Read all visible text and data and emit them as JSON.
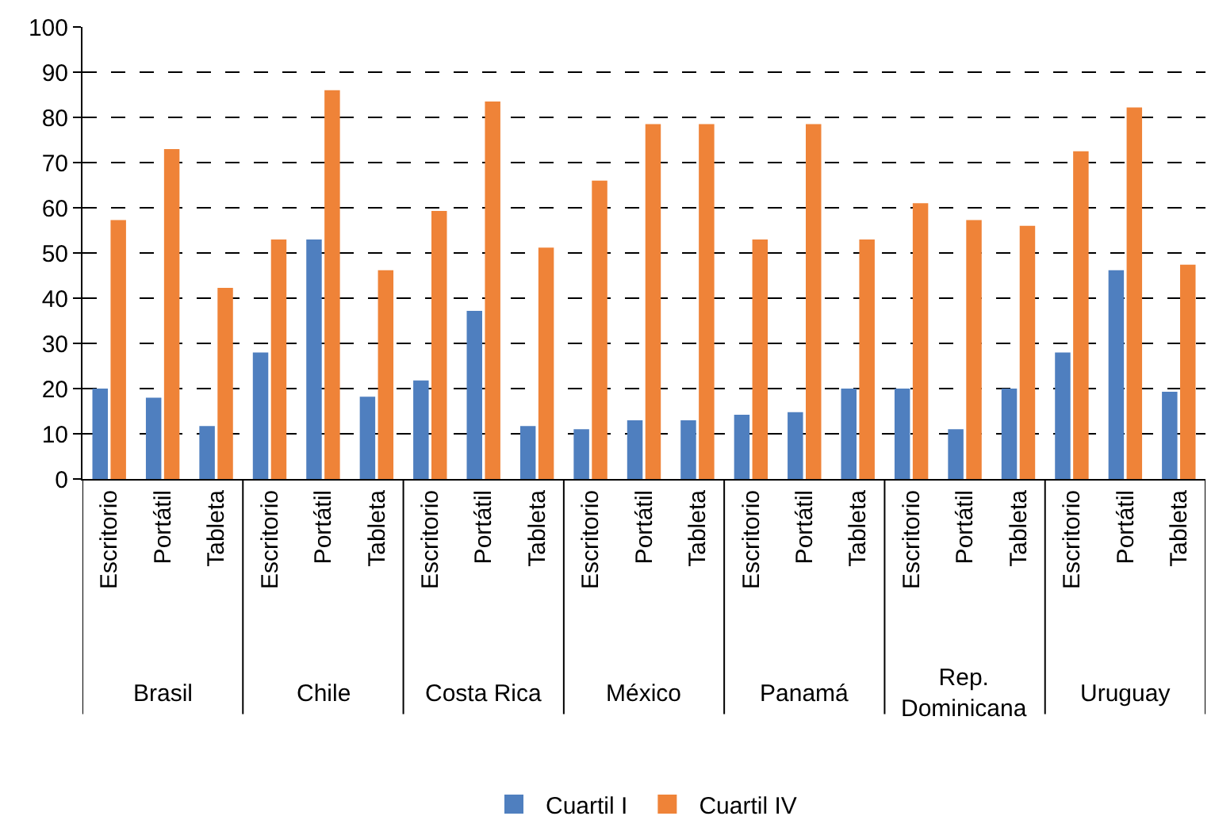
{
  "chart_data": {
    "type": "bar",
    "categories": [
      "Escritorio",
      "Portátil",
      "Tableta",
      "Escritorio",
      "Portátil",
      "Tableta",
      "Escritorio",
      "Portátil",
      "Tableta",
      "Escritorio",
      "Portátil",
      "Tableta",
      "Escritorio",
      "Portátil",
      "Tableta",
      "Escritorio",
      "Portátil",
      "Tableta",
      "Escritorio",
      "Portátil",
      "Tableta"
    ],
    "annotations": [
      "Brasil",
      "Chile",
      "Costa Rica",
      "México",
      "Panamá",
      "Rep. Dominicana",
      "Uruguay"
    ],
    "series": [
      {
        "name": "Cuartil I",
        "color": "#4f7fbf",
        "values": [
          20,
          18,
          11.7,
          28,
          53,
          18.2,
          21.8,
          37.2,
          11.7,
          11,
          13,
          13,
          14.2,
          14.8,
          20,
          20,
          11,
          20,
          28,
          46.2,
          19.3
        ]
      },
      {
        "name": "Cuartil IV",
        "color": "#ef8338",
        "values": [
          57.3,
          73,
          42.3,
          53,
          86,
          46.2,
          59.3,
          83.5,
          51.2,
          66,
          78.5,
          78.5,
          53,
          78.5,
          53,
          61,
          57.3,
          56,
          72.5,
          82.2,
          47.4
        ]
      }
    ],
    "ylim": [
      0,
      100
    ],
    "yticks": [
      0,
      10,
      20,
      30,
      40,
      50,
      60,
      70,
      80,
      90,
      100
    ],
    "grid": "y",
    "line_style": "dashed",
    "legend": "bottom"
  }
}
